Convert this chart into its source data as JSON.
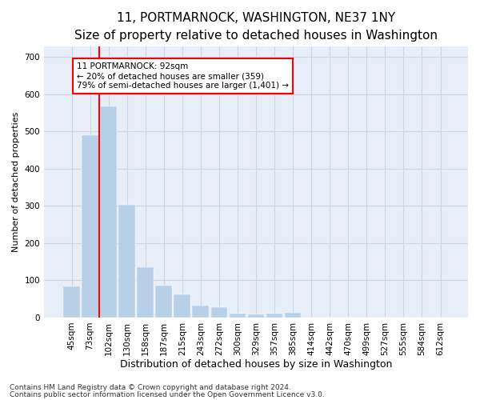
{
  "title": "11, PORTMARNOCK, WASHINGTON, NE37 1NY",
  "subtitle": "Size of property relative to detached houses in Washington",
  "xlabel": "Distribution of detached houses by size in Washington",
  "ylabel": "Number of detached properties",
  "bar_color": "#b8cfe8",
  "bar_edgecolor": "#b8cfe8",
  "annotation_box_text_line1": "11 PORTMARNOCK: 92sqm",
  "annotation_box_text_line2": "← 20% of detached houses are smaller (359)",
  "annotation_box_text_line3": "79% of semi-detached houses are larger (1,401) →",
  "categories": [
    "45sqm",
    "73sqm",
    "102sqm",
    "130sqm",
    "158sqm",
    "187sqm",
    "215sqm",
    "243sqm",
    "272sqm",
    "300sqm",
    "329sqm",
    "357sqm",
    "385sqm",
    "414sqm",
    "442sqm",
    "470sqm",
    "499sqm",
    "527sqm",
    "555sqm",
    "584sqm",
    "612sqm"
  ],
  "bar_values": [
    83,
    490,
    568,
    304,
    135,
    85,
    63,
    32,
    27,
    10,
    8,
    10,
    12,
    0,
    0,
    0,
    0,
    0,
    0,
    0,
    0
  ],
  "ylim": [
    0,
    730
  ],
  "yticks": [
    0,
    100,
    200,
    300,
    400,
    500,
    600,
    700
  ],
  "grid_color": "#ccd6e8",
  "background_color": "#e8eef8",
  "footer_line1": "Contains HM Land Registry data © Crown copyright and database right 2024.",
  "footer_line2": "Contains public sector information licensed under the Open Government Licence v3.0.",
  "title_fontsize": 11,
  "subtitle_fontsize": 9.5,
  "xlabel_fontsize": 9,
  "ylabel_fontsize": 8,
  "tick_fontsize": 7.5,
  "footer_fontsize": 6.5,
  "annot_fontsize": 7.5
}
